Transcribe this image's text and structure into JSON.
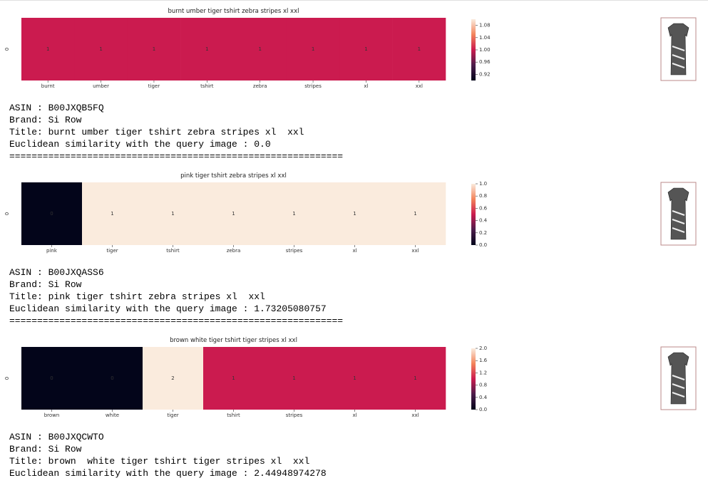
{
  "colormap": [
    "#03051a",
    "#4c1d4b",
    "#cb1b4f",
    "#f3845b",
    "#faebdd"
  ],
  "results": [
    {
      "heatmap": {
        "type": "heatmap",
        "title": "burnt umber tiger tshirt zebra stripes xl  xxl",
        "row_label": "0",
        "categories": [
          "burnt",
          "umber",
          "tiger",
          "tshirt",
          "zebra",
          "stripes",
          "xl",
          "xxl"
        ],
        "values": [
          1,
          1,
          1,
          1,
          1,
          1,
          1,
          1
        ],
        "clim": [
          0.9,
          1.1
        ],
        "cticks": [
          0.92,
          0.96,
          {
            "value": 1,
            "label": "1.00"
          },
          1.04,
          1.08
        ]
      },
      "asin": "ASIN : B00JXQB5FQ",
      "brand": "Brand: Si Row",
      "title": "Title: burnt umber tiger tshirt zebra stripes xl  xxl",
      "similarity": "Euclidean similarity with the query image : 0.0",
      "separator": "============================================================"
    },
    {
      "heatmap": {
        "type": "heatmap",
        "title": "pink tiger tshirt zebra stripes xl  xxl",
        "row_label": "0",
        "categories": [
          "pink",
          "tiger",
          "tshirt",
          "zebra",
          "stripes",
          "xl",
          "xxl"
        ],
        "values": [
          0,
          1,
          1,
          1,
          1,
          1,
          1
        ],
        "clim": [
          0,
          1
        ],
        "cticks": [
          {
            "value": 0,
            "label": "0.0"
          },
          0.2,
          0.4,
          0.6,
          0.8,
          {
            "value": 1,
            "label": "1.0"
          }
        ]
      },
      "asin": "ASIN : B00JXQASS6",
      "brand": "Brand: Si Row",
      "title": "Title: pink tiger tshirt zebra stripes xl  xxl",
      "similarity": "Euclidean similarity with the query image : 1.73205080757",
      "separator": "============================================================"
    },
    {
      "heatmap": {
        "type": "heatmap",
        "title": "brown  white tiger tshirt tiger stripes xl  xxl",
        "row_label": "0",
        "categories": [
          "brown",
          "white",
          "tiger",
          "tshirt",
          "stripes",
          "xl",
          "xxl"
        ],
        "values": [
          0,
          0,
          2,
          1,
          1,
          1,
          1
        ],
        "clim": [
          0,
          2
        ],
        "cticks": [
          {
            "value": 0,
            "label": "0.0"
          },
          0.4,
          0.8,
          1.2,
          1.6,
          {
            "value": 2,
            "label": "2.0"
          }
        ]
      },
      "asin": "ASIN : B00JXQCWTO",
      "brand": "Brand: Si Row",
      "title": "Title: brown  white tiger tshirt tiger stripes xl  xxl",
      "similarity": "Euclidean similarity with the query image : 2.44948974278"
    }
  ]
}
